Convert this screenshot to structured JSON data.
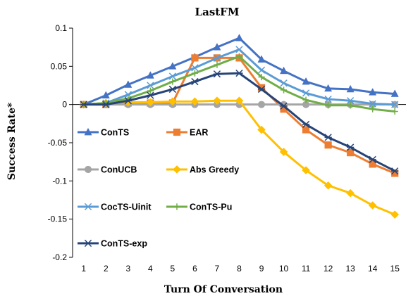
{
  "chart_data": {
    "type": "line",
    "title": "LastFM",
    "xlabel": "Turn Of Conversation",
    "ylabel": "Success Rate*",
    "x": [
      1,
      2,
      3,
      4,
      5,
      6,
      7,
      8,
      9,
      10,
      11,
      12,
      13,
      14,
      15
    ],
    "xlim": [
      0.5,
      15.5
    ],
    "ylim": [
      -0.2,
      0.1
    ],
    "yticks": [
      0.1,
      0.05,
      0,
      -0.05,
      -0.1,
      -0.15,
      -0.2
    ],
    "ytick_labels": [
      "0.1",
      "0.05",
      "0",
      "-0.05",
      "-0.1",
      "-0.15",
      "-0.2"
    ],
    "grid": false,
    "legend_position": "inside-lower-left, two columns",
    "series": [
      {
        "name": "ConTS",
        "color": "#4472C4",
        "marker": "triangle",
        "values": [
          0,
          0.012,
          0.026,
          0.038,
          0.05,
          0.062,
          0.075,
          0.087,
          0.059,
          0.044,
          0.03,
          0.021,
          0.02,
          0.016,
          0.014
        ]
      },
      {
        "name": "EAR",
        "color": "#ED7D31",
        "marker": "square",
        "values": [
          0,
          0,
          0.002,
          0.002,
          0.002,
          0.061,
          0.061,
          0.061,
          0.022,
          -0.006,
          -0.033,
          -0.053,
          -0.063,
          -0.078,
          -0.09
        ]
      },
      {
        "name": "ConUCB",
        "color": "#A5A5A5",
        "marker": "circle",
        "values": [
          0,
          0,
          0,
          0,
          0,
          0,
          0,
          0,
          0,
          0,
          0,
          0,
          0,
          0,
          0
        ]
      },
      {
        "name": "Abs Greedy",
        "color": "#FFC000",
        "marker": "diamond",
        "values": [
          0,
          0.002,
          0.003,
          0.003,
          0.004,
          0.004,
          0.005,
          0.005,
          -0.033,
          -0.062,
          -0.086,
          -0.106,
          -0.116,
          -0.132,
          -0.144
        ]
      },
      {
        "name": "CocTS-Uinit",
        "color": "#5B9BD5",
        "marker": "x",
        "values": [
          0,
          0.002,
          0.013,
          0.025,
          0.037,
          0.048,
          0.061,
          0.072,
          0.045,
          0.028,
          0.015,
          0.007,
          0.005,
          0.001,
          0
        ]
      },
      {
        "name": "ConTS-Pu",
        "color": "#70AD47",
        "marker": "plus",
        "values": [
          0,
          0.002,
          0.008,
          0.018,
          0.03,
          0.041,
          0.052,
          0.063,
          0.036,
          0.019,
          0.006,
          -0.001,
          -0.001,
          -0.006,
          -0.009
        ]
      },
      {
        "name": "ConTS-exp",
        "color": "#264478",
        "marker": "star",
        "values": [
          0,
          0,
          0.005,
          0.012,
          0.02,
          0.03,
          0.04,
          0.041,
          0.02,
          -0.002,
          -0.026,
          -0.043,
          -0.056,
          -0.072,
          -0.087
        ]
      }
    ]
  }
}
